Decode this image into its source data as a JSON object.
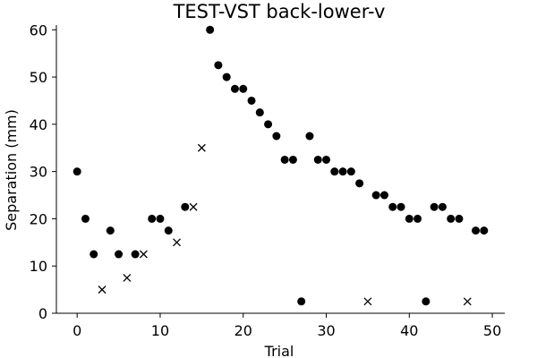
{
  "chart_data": {
    "type": "scatter",
    "title": "TEST-VST back-lower-v",
    "xlabel": "Trial",
    "ylabel": "Separation (mm)",
    "xlim": [
      -2.5,
      51.5
    ],
    "ylim": [
      0,
      61
    ],
    "xticks": [
      0,
      10,
      20,
      30,
      40,
      50
    ],
    "yticks": [
      0,
      10,
      20,
      30,
      40,
      50,
      60
    ],
    "grid": false,
    "series": [
      {
        "marker": "circle",
        "color": "#000000",
        "points": [
          [
            0,
            30
          ],
          [
            1,
            20
          ],
          [
            2,
            12.5
          ],
          [
            4,
            17.5
          ],
          [
            5,
            12.5
          ],
          [
            7,
            12.5
          ],
          [
            9,
            20
          ],
          [
            10,
            20
          ],
          [
            11,
            17.5
          ],
          [
            13,
            22.5
          ],
          [
            16,
            60
          ],
          [
            17,
            52.5
          ],
          [
            18,
            50
          ],
          [
            19,
            47.5
          ],
          [
            20,
            47.5
          ],
          [
            21,
            45
          ],
          [
            22,
            42.5
          ],
          [
            23,
            40
          ],
          [
            24,
            37.5
          ],
          [
            25,
            32.5
          ],
          [
            26,
            32.5
          ],
          [
            27,
            2.5
          ],
          [
            28,
            37.5
          ],
          [
            29,
            32.5
          ],
          [
            30,
            32.5
          ],
          [
            31,
            30
          ],
          [
            32,
            30
          ],
          [
            33,
            30
          ],
          [
            34,
            27.5
          ],
          [
            36,
            25
          ],
          [
            37,
            25
          ],
          [
            38,
            22.5
          ],
          [
            39,
            22.5
          ],
          [
            40,
            20
          ],
          [
            41,
            20
          ],
          [
            42,
            2.5
          ],
          [
            43,
            22.5
          ],
          [
            44,
            22.5
          ],
          [
            45,
            20
          ],
          [
            46,
            20
          ],
          [
            48,
            17.5
          ],
          [
            49,
            17.5
          ]
        ]
      },
      {
        "marker": "x",
        "color": "#000000",
        "points": [
          [
            3,
            5
          ],
          [
            6,
            7.5
          ],
          [
            8,
            12.5
          ],
          [
            12,
            15
          ],
          [
            14,
            22.5
          ],
          [
            15,
            35
          ],
          [
            35,
            2.5
          ],
          [
            47,
            2.5
          ]
        ]
      }
    ]
  }
}
